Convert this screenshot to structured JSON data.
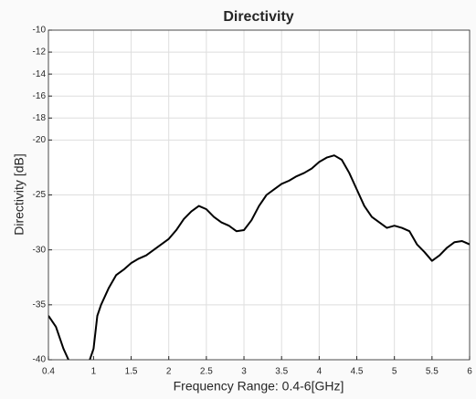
{
  "chart_data": {
    "type": "line",
    "title": "Directivity",
    "x_label": "Frequency Range: 0.4-6[GHz]",
    "y_label": "Directivity [dB]",
    "x": [
      0.4,
      0.5,
      0.6,
      0.7,
      0.8,
      0.9,
      1.0,
      1.05,
      1.1,
      1.2,
      1.3,
      1.4,
      1.5,
      1.6,
      1.7,
      1.8,
      1.9,
      2.0,
      2.1,
      2.2,
      2.3,
      2.4,
      2.5,
      2.6,
      2.7,
      2.8,
      2.9,
      3.0,
      3.1,
      3.2,
      3.3,
      3.4,
      3.5,
      3.6,
      3.7,
      3.8,
      3.9,
      4.0,
      4.1,
      4.2,
      4.3,
      4.4,
      4.5,
      4.6,
      4.7,
      4.8,
      4.9,
      5.0,
      5.1,
      5.2,
      5.3,
      5.4,
      5.5,
      5.6,
      5.7,
      5.8,
      5.9,
      6.0
    ],
    "series": [
      {
        "name": "Directivity",
        "color": "#000000",
        "values": [
          -36,
          -37,
          -39,
          -40.5,
          -42,
          -41,
          -39,
          -36,
          -35,
          -33.5,
          -32.3,
          -31.8,
          -31.2,
          -30.8,
          -30.5,
          -30,
          -29.5,
          -29,
          -28.2,
          -27.2,
          -26.5,
          -26,
          -26.3,
          -27,
          -27.5,
          -27.8,
          -28.3,
          -28.2,
          -27.3,
          -26,
          -25,
          -24.5,
          -24,
          -23.7,
          -23.3,
          -23,
          -22.6,
          -22,
          -21.6,
          -21.4,
          -21.8,
          -23,
          -24.5,
          -26,
          -27,
          -27.5,
          -28,
          -27.8,
          -28,
          -28.3,
          -29.5,
          -30.2,
          -31,
          -30.5,
          -29.8,
          -29.3,
          -29.2,
          -29.5
        ]
      }
    ],
    "xlim": [
      0.4,
      6
    ],
    "ylim": [
      -40,
      -10
    ],
    "xticks": [
      0.4,
      1,
      1.5,
      2,
      2.5,
      3,
      3.5,
      4,
      4.5,
      5,
      5.5,
      6
    ],
    "yticks": [
      -40,
      -35,
      -30,
      -25,
      -20,
      -18,
      -16,
      -14,
      -12,
      -10
    ],
    "grid": true
  }
}
